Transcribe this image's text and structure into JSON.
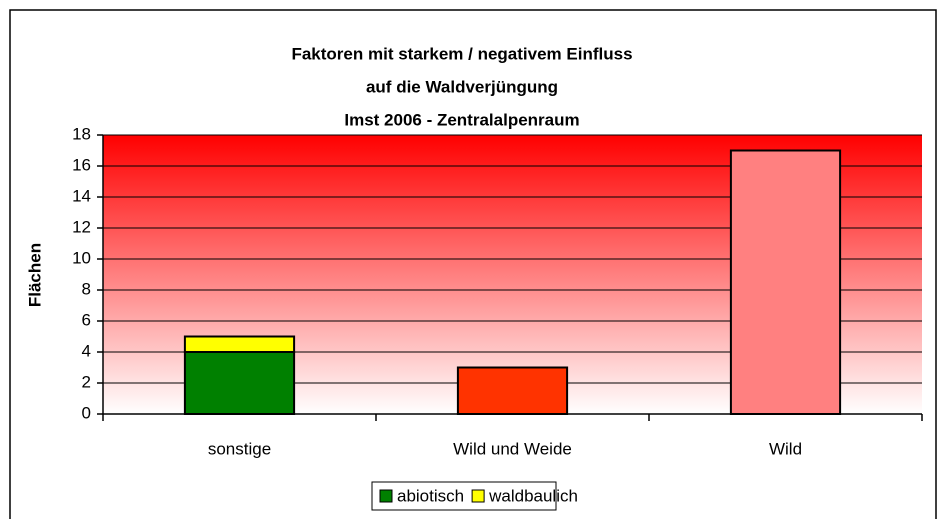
{
  "chart_data": {
    "type": "stacked_bar",
    "title": [
      "Faktoren mit starkem / negativem Einfluss",
      "auf die  Waldverjüngung",
      "Imst 2006 - Zentralalpenraum"
    ],
    "y_label": "Flächen",
    "categories": [
      "sonstige",
      "Wild und Weide",
      "Wild"
    ],
    "series": [
      {
        "name": "abiotisch",
        "color": "#008000",
        "colors": [
          "#008000",
          "#ff3300",
          "#ff8080"
        ],
        "values": [
          4,
          3,
          17
        ]
      },
      {
        "name": "waldbaulich",
        "color": "#ffff00",
        "values": [
          1,
          null,
          null
        ]
      }
    ],
    "ylim": [
      0,
      18
    ],
    "yticks": [
      0,
      2,
      4,
      6,
      8,
      10,
      12,
      14,
      16,
      18
    ],
    "grid": true,
    "legend": "bottom"
  }
}
